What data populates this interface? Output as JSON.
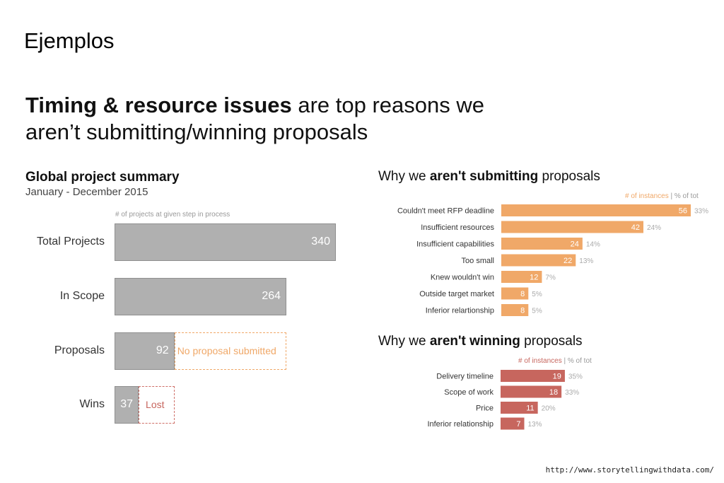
{
  "slide": {
    "title": "Ejemplos",
    "headline_bold": "Timing & resource issues",
    "headline_rest_line1": " are top reasons we",
    "headline_line2": "aren’t submitting/winning proposals",
    "source": "http://www.storytellingwithdata.com/"
  },
  "colors": {
    "gray_bar": "#b0b0b0",
    "orange": "#f0a868",
    "red": "#c7665e",
    "muted": "#999999"
  },
  "summary": {
    "title": "Global project summary",
    "subtitle": "January - December 2015",
    "note": "# of projects at given step in process",
    "not_submitted_label": "No proposal submitted",
    "lost_label": "Lost"
  },
  "chart_data": [
    {
      "type": "bar",
      "orientation": "horizontal",
      "title": "Global project summary",
      "categories": [
        "Total Projects",
        "In Scope",
        "Proposals",
        "Wins"
      ],
      "values": [
        340,
        264,
        92,
        37
      ],
      "xlim": [
        0,
        340
      ]
    },
    {
      "type": "bar",
      "orientation": "horizontal",
      "title_pre": "Why we ",
      "title_bold": "aren't submitting",
      "title_post": " proposals",
      "legend_count": "# of instances",
      "legend_sep": " | ",
      "legend_pct": "% of tot",
      "categories": [
        "Couldn't meet RFP deadline",
        "Insufficient resources",
        "Insufficient capabilities",
        "Too small",
        "Knew wouldn't win",
        "Outside target market",
        "Inferior relartionship"
      ],
      "values": [
        56,
        42,
        24,
        22,
        12,
        8,
        8
      ],
      "percent_labels": [
        "33%",
        "24%",
        "14%",
        "13%",
        "7%",
        "5%",
        "5%"
      ],
      "xlim": [
        0,
        56
      ]
    },
    {
      "type": "bar",
      "orientation": "horizontal",
      "title_pre": "Why we ",
      "title_bold": "aren't winning",
      "title_post": " proposals",
      "legend_count": "# of instances",
      "legend_sep": " | ",
      "legend_pct": "% of tot",
      "categories": [
        "Delivery timeline",
        "Scope of work",
        "Price",
        "Inferior relationship"
      ],
      "values": [
        19,
        18,
        11,
        7
      ],
      "percent_labels": [
        "35%",
        "33%",
        "20%",
        "13%"
      ],
      "xlim": [
        0,
        56
      ]
    }
  ]
}
